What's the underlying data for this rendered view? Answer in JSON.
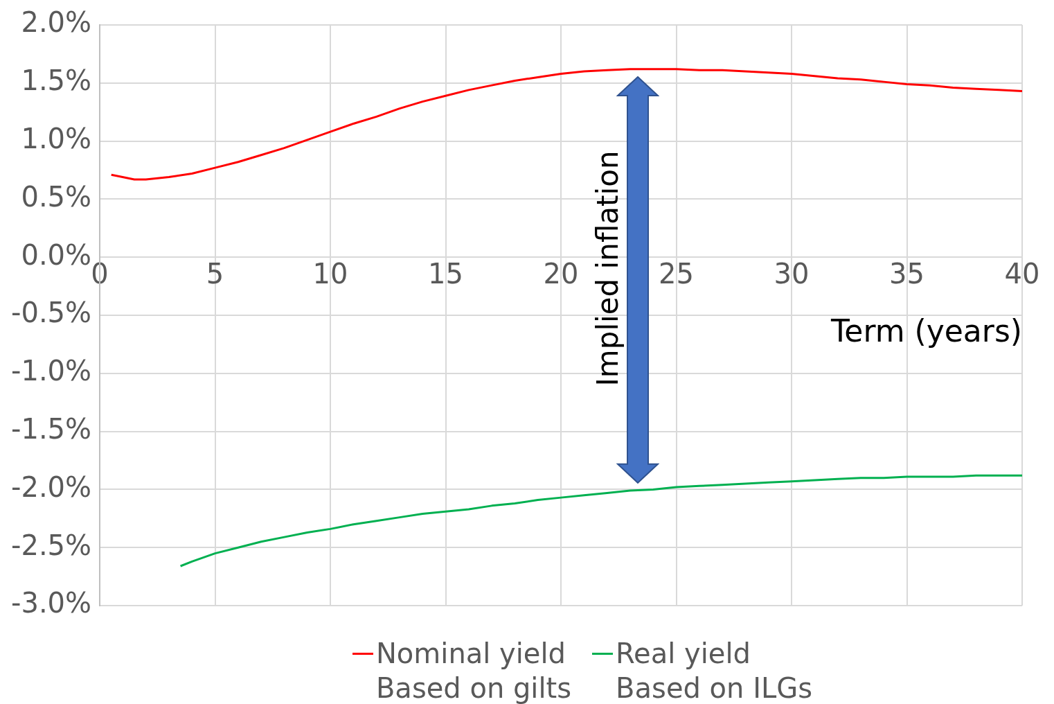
{
  "chart_data": {
    "type": "line",
    "xlabel": "Term (years)",
    "annotations": [
      "Implied inflation"
    ],
    "series": [
      {
        "name": "Nominal yield\nBased on gilts",
        "color": "#ff0000",
        "x": [
          0.5,
          1.5,
          2,
          3,
          4,
          5,
          6,
          7,
          8,
          9,
          10,
          11,
          12,
          13,
          14,
          15,
          16,
          17,
          18,
          19,
          20,
          21,
          22,
          23,
          24,
          25,
          26,
          27,
          28,
          29,
          30,
          31,
          32,
          33,
          34,
          35,
          36,
          37,
          38,
          39,
          40
        ],
        "values": [
          0.71,
          0.67,
          0.67,
          0.69,
          0.72,
          0.77,
          0.82,
          0.88,
          0.94,
          1.01,
          1.08,
          1.15,
          1.21,
          1.28,
          1.34,
          1.39,
          1.44,
          1.48,
          1.52,
          1.55,
          1.58,
          1.6,
          1.61,
          1.62,
          1.62,
          1.62,
          1.61,
          1.61,
          1.6,
          1.59,
          1.58,
          1.56,
          1.54,
          1.53,
          1.51,
          1.49,
          1.48,
          1.46,
          1.45,
          1.44,
          1.43
        ]
      },
      {
        "name": "Real yield\nBased on ILGs",
        "color": "#00b050",
        "x": [
          3.5,
          4,
          5,
          6,
          7,
          8,
          9,
          10,
          11,
          12,
          13,
          14,
          15,
          16,
          17,
          18,
          19,
          20,
          21,
          22,
          23,
          24,
          25,
          26,
          27,
          28,
          29,
          30,
          31,
          32,
          33,
          34,
          35,
          36,
          37,
          38,
          39,
          40
        ],
        "values": [
          -2.66,
          -2.62,
          -2.55,
          -2.5,
          -2.45,
          -2.41,
          -2.37,
          -2.34,
          -2.3,
          -2.27,
          -2.24,
          -2.21,
          -2.19,
          -2.17,
          -2.14,
          -2.12,
          -2.09,
          -2.07,
          -2.05,
          -2.03,
          -2.01,
          -2.0,
          -1.98,
          -1.97,
          -1.96,
          -1.95,
          -1.94,
          -1.93,
          -1.92,
          -1.91,
          -1.9,
          -1.9,
          -1.89,
          -1.89,
          -1.89,
          -1.88,
          -1.88,
          -1.88
        ]
      }
    ],
    "xlim": [
      0,
      40
    ],
    "xticks": [
      0,
      5,
      10,
      15,
      20,
      25,
      30,
      35,
      40
    ],
    "ylim": [
      -3,
      2
    ],
    "yticks": [
      {
        "value": -3,
        "label": "-3.0%"
      },
      {
        "value": -2.5,
        "label": "-2.5%"
      },
      {
        "value": -2,
        "label": "-2.0%"
      },
      {
        "value": -1.5,
        "label": "-1.5%"
      },
      {
        "value": -1,
        "label": "-1.0%"
      },
      {
        "value": -0.5,
        "label": "-0.5%"
      },
      {
        "value": 0,
        "label": "0.0%"
      },
      {
        "value": 0.5,
        "label": "0.5%"
      },
      {
        "value": 1,
        "label": "1.0%"
      },
      {
        "value": 1.5,
        "label": "1.5%"
      },
      {
        "value": 2,
        "label": "2.0%"
      }
    ],
    "grid": true,
    "legend": "bottom",
    "marker": "none",
    "line_style": "solid"
  }
}
